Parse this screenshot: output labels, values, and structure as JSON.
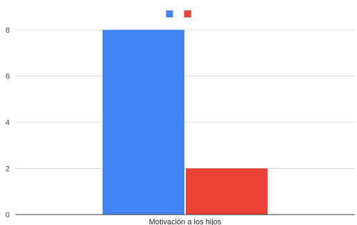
{
  "chart_data": {
    "type": "bar",
    "categories": [
      "Motivación a los hijos"
    ],
    "series": [
      {
        "name": "",
        "values": [
          8
        ],
        "color": "#4285f4"
      },
      {
        "name": "",
        "values": [
          2
        ],
        "color": "#ea4335"
      }
    ],
    "title": "",
    "xlabel": "",
    "ylabel": "",
    "ylim": [
      0,
      8
    ],
    "yticks": [
      "0",
      "2",
      "4",
      "6",
      "8"
    ],
    "grid": true,
    "legend_position": "top"
  }
}
